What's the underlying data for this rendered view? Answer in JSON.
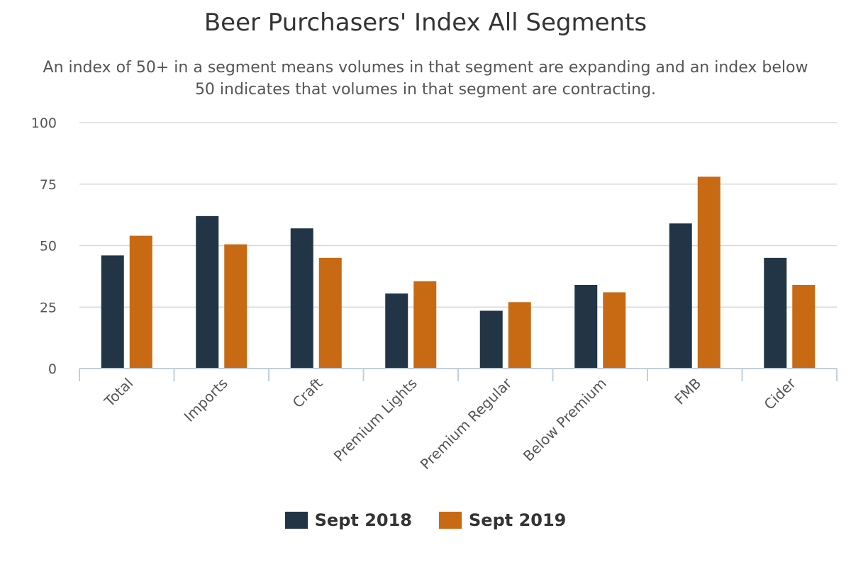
{
  "chart_data": {
    "type": "bar",
    "title": "Beer Purchasers' Index All Segments",
    "subtitle": "An index of 50+ in a segment means volumes in that segment are expanding and an index below 50 indicates that volumes in that segment are contracting.",
    "categories": [
      "Total",
      "Imports",
      "Craft",
      "Premium Lights",
      "Premium Regular",
      "Below Premium",
      "FMB",
      "Cider"
    ],
    "series": [
      {
        "name": "Sept 2018",
        "color": "#213546",
        "values": [
          46,
          62,
          57,
          30.5,
          23.5,
          34,
          59,
          45
        ]
      },
      {
        "name": "Sept 2019",
        "color": "#c76a13",
        "values": [
          54,
          50.5,
          45,
          35.5,
          27,
          31,
          78,
          34
        ]
      }
    ],
    "ylim": [
      0,
      100
    ],
    "yticks": [
      0,
      25,
      50,
      75,
      100
    ],
    "grid": true,
    "legend_position": "bottom-center"
  }
}
